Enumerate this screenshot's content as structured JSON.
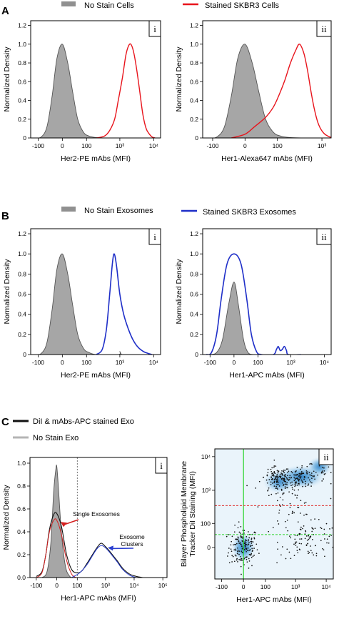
{
  "colors": {
    "no_stain_fill": "#a6a6a6",
    "no_stain_line": "#555555",
    "stained_cells": "#e8141c",
    "stained_exo": "#1f2fc8",
    "dil_line": "#111111",
    "single_exo_line": "#d42020",
    "cluster_line": "#2a3fd0",
    "green_line": "#2ad42a",
    "red_dash": "#e03030",
    "density_blue": "#2c7fc4"
  },
  "panel_A": {
    "letter": "A",
    "legend": [
      {
        "label": "No Stain Cells",
        "color": "#909090"
      },
      {
        "label": "Stained SKBR3 Cells",
        "color": "#e8141c"
      }
    ]
  },
  "panel_B": {
    "letter": "B",
    "legend": [
      {
        "label": "No Stain Exosomes",
        "color": "#909090"
      },
      {
        "label": "Stained SKBR3 Exosomes",
        "color": "#1f2fc8"
      }
    ]
  },
  "panel_C": {
    "letter": "C",
    "legend": [
      {
        "label": "DiI & mAbs-APC stained Exo",
        "color": "#111111"
      },
      {
        "label": "No Stain Exo",
        "color": "#b5b5b5"
      }
    ],
    "annotations": {
      "single": "Single Exosomes",
      "cluster_1": "Exosome",
      "cluster_2": "Clusters"
    }
  },
  "chart_data": [
    {
      "id": "A-i",
      "tag": "i",
      "type": "area",
      "xlabel": "Her2-PE mAbs (MFI)",
      "ylabel": "Normalized Density",
      "x_scale": "biexponential",
      "x_ticks": [
        {
          "value": -100,
          "label": "-100"
        },
        {
          "value": 0,
          "label": "0"
        },
        {
          "value": 100,
          "label": "100"
        },
        {
          "value": 1000,
          "label": "10³"
        },
        {
          "value": 10000,
          "label": "10⁴"
        }
      ],
      "y_ticks": [
        "0",
        "0.2",
        "0.4",
        "0.6",
        "0.8",
        "1.0",
        "1.2"
      ],
      "ylim": [
        0,
        1.25
      ],
      "series": [
        {
          "name": "No Stain Cells",
          "style": "filled-gray",
          "points": [
            [
              -130,
              0
            ],
            [
              -80,
              0.01
            ],
            [
              -50,
              0.12
            ],
            [
              -30,
              0.45
            ],
            [
              -15,
              0.85
            ],
            [
              0,
              1.0
            ],
            [
              15,
              0.8
            ],
            [
              30,
              0.5
            ],
            [
              50,
              0.2
            ],
            [
              80,
              0.06
            ],
            [
              120,
              0.02
            ],
            [
              200,
              0.004
            ],
            [
              400,
              0
            ]
          ]
        },
        {
          "name": "Stained SKBR3 Cells",
          "style": "red",
          "points": [
            [
              200,
              0
            ],
            [
              350,
              0.02
            ],
            [
              500,
              0.08
            ],
            [
              700,
              0.2
            ],
            [
              900,
              0.4
            ],
            [
              1200,
              0.65
            ],
            [
              1500,
              0.88
            ],
            [
              1800,
              0.98
            ],
            [
              2100,
              1.0
            ],
            [
              2500,
              0.93
            ],
            [
              3000,
              0.78
            ],
            [
              3800,
              0.52
            ],
            [
              4800,
              0.25
            ],
            [
              6000,
              0.1
            ],
            [
              7500,
              0.04
            ],
            [
              9000,
              0.01
            ],
            [
              11000,
              0
            ]
          ]
        }
      ]
    },
    {
      "id": "A-ii",
      "tag": "ii",
      "type": "area",
      "xlabel": "Her1-Alexa647 mAbs (MFI)",
      "ylabel": "Normalized Density",
      "x_scale": "biexponential",
      "x_ticks": [
        {
          "value": -100,
          "label": "-100"
        },
        {
          "value": 0,
          "label": "0"
        },
        {
          "value": 100,
          "label": "100"
        },
        {
          "value": 1000,
          "label": "10³"
        }
      ],
      "y_ticks": [
        "0",
        "0.2",
        "0.4",
        "0.6",
        "0.8",
        "1.0",
        "1.2"
      ],
      "ylim": [
        0,
        1.25
      ],
      "series": [
        {
          "name": "No Stain Cells",
          "style": "filled-gray",
          "points": [
            [
              -130,
              0
            ],
            [
              -80,
              0.01
            ],
            [
              -50,
              0.12
            ],
            [
              -30,
              0.45
            ],
            [
              -15,
              0.85
            ],
            [
              0,
              1.0
            ],
            [
              15,
              0.8
            ],
            [
              30,
              0.5
            ],
            [
              50,
              0.2
            ],
            [
              80,
              0.06
            ],
            [
              120,
              0.02
            ],
            [
              200,
              0.004
            ],
            [
              400,
              0
            ]
          ]
        },
        {
          "name": "Stained SKBR3 Cells",
          "style": "red",
          "points": [
            [
              -30,
              0
            ],
            [
              0,
              0.04
            ],
            [
              20,
              0.12
            ],
            [
              50,
              0.22
            ],
            [
              80,
              0.33
            ],
            [
              110,
              0.46
            ],
            [
              150,
              0.62
            ],
            [
              200,
              0.8
            ],
            [
              260,
              0.93
            ],
            [
              320,
              1.0
            ],
            [
              400,
              0.9
            ],
            [
              480,
              0.72
            ],
            [
              580,
              0.48
            ],
            [
              700,
              0.28
            ],
            [
              850,
              0.14
            ],
            [
              1100,
              0.05
            ],
            [
              1500,
              0.01
            ],
            [
              2000,
              0
            ]
          ]
        }
      ]
    },
    {
      "id": "B-i",
      "tag": "i",
      "type": "area",
      "xlabel": "Her2-PE mAbs (MFI)",
      "ylabel": "Normalized Density",
      "x_scale": "biexponential",
      "x_ticks": [
        {
          "value": -100,
          "label": "-100"
        },
        {
          "value": 0,
          "label": "0"
        },
        {
          "value": 100,
          "label": "100"
        },
        {
          "value": 1000,
          "label": "10³"
        },
        {
          "value": 10000,
          "label": "10⁴"
        }
      ],
      "y_ticks": [
        "0",
        "0.2",
        "0.4",
        "0.6",
        "0.8",
        "1.0",
        "1.2"
      ],
      "ylim": [
        0,
        1.25
      ],
      "series": [
        {
          "name": "No Stain Exosomes",
          "style": "filled-gray",
          "points": [
            [
              -130,
              0
            ],
            [
              -80,
              0.01
            ],
            [
              -50,
              0.12
            ],
            [
              -30,
              0.45
            ],
            [
              -15,
              0.85
            ],
            [
              0,
              1.0
            ],
            [
              15,
              0.8
            ],
            [
              30,
              0.5
            ],
            [
              50,
              0.2
            ],
            [
              80,
              0.06
            ],
            [
              120,
              0.02
            ],
            [
              200,
              0
            ],
            [
              900,
              0
            ],
            [
              1000,
              0.03
            ],
            [
              1150,
              0
            ],
            [
              2000,
              0
            ]
          ]
        },
        {
          "name": "Stained SKBR3 Exosomes",
          "style": "blue",
          "points": [
            [
              200,
              0
            ],
            [
              300,
              0.05
            ],
            [
              400,
              0.25
            ],
            [
              500,
              0.6
            ],
            [
              600,
              0.9
            ],
            [
              680,
              1.0
            ],
            [
              800,
              0.88
            ],
            [
              1000,
              0.6
            ],
            [
              1300,
              0.4
            ],
            [
              1800,
              0.25
            ],
            [
              2500,
              0.14
            ],
            [
              3500,
              0.07
            ],
            [
              5000,
              0.03
            ],
            [
              7000,
              0.01
            ],
            [
              9000,
              0
            ]
          ]
        }
      ]
    },
    {
      "id": "B-ii",
      "tag": "ii",
      "type": "area",
      "xlabel": "Her1-APC mAbs (MFI)",
      "ylabel": "Normalized Density",
      "x_scale": "biexponential",
      "x_ticks": [
        {
          "value": -100,
          "label": "-100"
        },
        {
          "value": 0,
          "label": "0"
        },
        {
          "value": 100,
          "label": "100"
        },
        {
          "value": 1000,
          "label": "10³"
        },
        {
          "value": 10000,
          "label": "10⁴"
        }
      ],
      "y_ticks": [
        "0",
        "0.2",
        "0.4",
        "0.6",
        "0.8",
        "1.0",
        "1.2"
      ],
      "ylim": [
        0,
        1.25
      ],
      "series": [
        {
          "name": "No Stain Exosomes",
          "style": "filled-gray",
          "points": [
            [
              -100,
              0
            ],
            [
              -60,
              0.02
            ],
            [
              -35,
              0.15
            ],
            [
              -15,
              0.5
            ],
            [
              0,
              0.72
            ],
            [
              12,
              0.5
            ],
            [
              28,
              0.15
            ],
            [
              45,
              0.02
            ],
            [
              70,
              0
            ]
          ]
        },
        {
          "name": "Stained SKBR3 Exosomes",
          "style": "blue",
          "points": [
            [
              -130,
              0
            ],
            [
              -90,
              0.02
            ],
            [
              -60,
              0.2
            ],
            [
              -40,
              0.55
            ],
            [
              -20,
              0.9
            ],
            [
              0,
              1.0
            ],
            [
              20,
              0.9
            ],
            [
              40,
              0.55
            ],
            [
              60,
              0.2
            ],
            [
              90,
              0.03
            ],
            [
              130,
              0
            ],
            [
              300,
              0
            ],
            [
              370,
              0.05
            ],
            [
              420,
              0.08
            ],
            [
              480,
              0.04
            ],
            [
              550,
              0.05
            ],
            [
              640,
              0.08
            ],
            [
              740,
              0.04
            ],
            [
              850,
              0
            ],
            [
              2000,
              0
            ]
          ]
        }
      ]
    },
    {
      "id": "C-i",
      "tag": "i",
      "type": "area",
      "xlabel": "Her1-APC mAbs (MFI)",
      "ylabel": "Normalized Density",
      "x_scale": "biexponential",
      "x_ticks": [
        {
          "value": -100,
          "label": "-100"
        },
        {
          "value": 0,
          "label": "0"
        },
        {
          "value": 100,
          "label": "100"
        },
        {
          "value": 1000,
          "label": "10³"
        },
        {
          "value": 10000,
          "label": "10⁴"
        },
        {
          "value": 100000,
          "label": "10⁵"
        }
      ],
      "y_ticks": [
        "0.0",
        "0.2",
        "0.4",
        "0.6",
        "0.8",
        "1.0"
      ],
      "ylim": [
        0,
        1.05
      ],
      "vline": 100,
      "series": [
        {
          "name": "No Stain Exo",
          "style": "filled-gray",
          "points": [
            [
              -60,
              0
            ],
            [
              -35,
              0.05
            ],
            [
              -20,
              0.3
            ],
            [
              -10,
              0.75
            ],
            [
              -3,
              0.95
            ],
            [
              0,
              0.97
            ],
            [
              5,
              0.8
            ],
            [
              15,
              0.4
            ],
            [
              30,
              0.1
            ],
            [
              50,
              0.01
            ],
            [
              70,
              0
            ]
          ]
        },
        {
          "name": "DiI & mAbs-APC stained Exo",
          "style": "black",
          "points": [
            [
              -100,
              0.01
            ],
            [
              -60,
              0.05
            ],
            [
              -40,
              0.2
            ],
            [
              -25,
              0.42
            ],
            [
              -10,
              0.55
            ],
            [
              0,
              0.56
            ],
            [
              15,
              0.45
            ],
            [
              35,
              0.2
            ],
            [
              60,
              0.07
            ],
            [
              100,
              0.04
            ],
            [
              150,
              0.06
            ],
            [
              220,
              0.12
            ],
            [
              350,
              0.2
            ],
            [
              500,
              0.26
            ],
            [
              700,
              0.3
            ],
            [
              1000,
              0.27
            ],
            [
              1500,
              0.22
            ],
            [
              2500,
              0.15
            ],
            [
              4000,
              0.08
            ],
            [
              7000,
              0.03
            ],
            [
              12000,
              0.01
            ],
            [
              20000,
              0
            ]
          ]
        },
        {
          "name": "Single Exosomes",
          "style": "red-thin",
          "points": [
            [
              -100,
              0
            ],
            [
              -60,
              0.04
            ],
            [
              -40,
              0.2
            ],
            [
              -25,
              0.4
            ],
            [
              -10,
              0.5
            ],
            [
              0,
              0.5
            ],
            [
              15,
              0.38
            ],
            [
              35,
              0.15
            ],
            [
              60,
              0.03
            ],
            [
              90,
              0
            ]
          ]
        },
        {
          "name": "Exosome Clusters",
          "style": "blue-thin",
          "points": [
            [
              60,
              0
            ],
            [
              120,
              0.04
            ],
            [
              220,
              0.11
            ],
            [
              350,
              0.19
            ],
            [
              500,
              0.25
            ],
            [
              700,
              0.28
            ],
            [
              1000,
              0.26
            ],
            [
              1500,
              0.21
            ],
            [
              2500,
              0.14
            ],
            [
              4000,
              0.07
            ],
            [
              7000,
              0.02
            ],
            [
              12000,
              0
            ]
          ]
        }
      ]
    },
    {
      "id": "C-ii",
      "tag": "ii",
      "type": "scatter",
      "xlabel": "Her1-APC mAbs (MFI)",
      "ylabel_lines": [
        "Bilayer Phospholipid Membrane",
        "Tracker DiI Staining (MFI)"
      ],
      "x_scale": "biexponential",
      "y_scale": "biexponential",
      "x_ticks": [
        {
          "value": -100,
          "label": "-100"
        },
        {
          "value": 0,
          "label": "0"
        },
        {
          "value": 100,
          "label": "100"
        },
        {
          "value": 1000,
          "label": "10³"
        },
        {
          "value": 10000,
          "label": "10⁴"
        }
      ],
      "y_ticks": [
        {
          "value": 0,
          "label": "0"
        },
        {
          "value": 100,
          "label": "100"
        },
        {
          "value": 1000,
          "label": "10³"
        },
        {
          "value": 10000,
          "label": "10⁴"
        }
      ],
      "gates": {
        "x_green": 0,
        "y_green": 40,
        "y_red_dashed": 350
      }
    }
  ]
}
